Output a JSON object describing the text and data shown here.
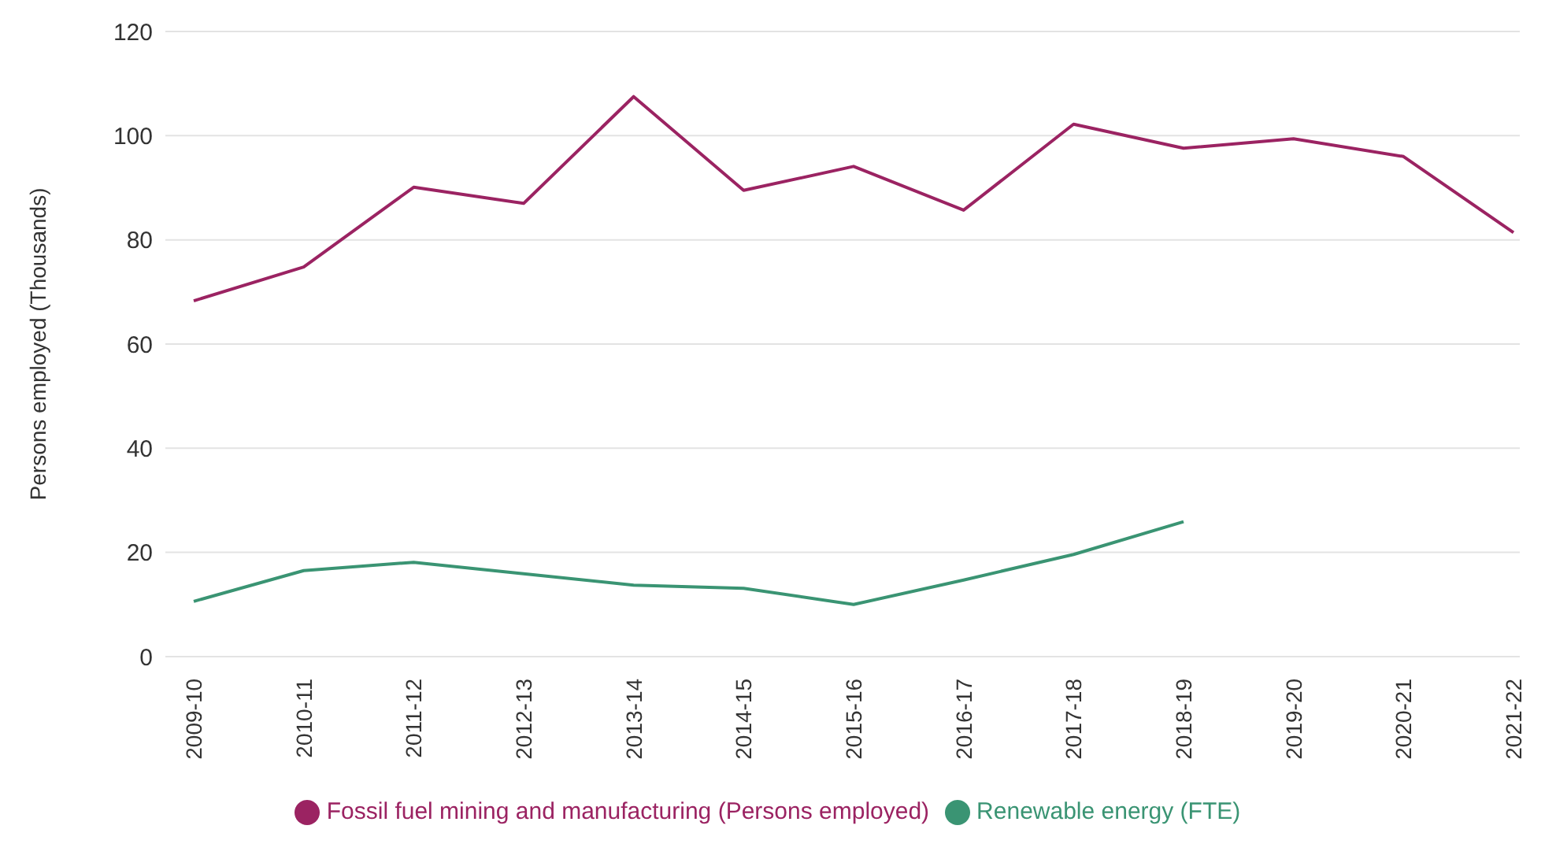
{
  "chart_data": {
    "type": "line",
    "ylabel": "Persons employed (Thousands)",
    "categories": [
      "2009-10",
      "2010-11",
      "2011-12",
      "2012-13",
      "2013-14",
      "2014-15",
      "2015-16",
      "2016-17",
      "2017-18",
      "2018-19",
      "2019-20",
      "2020-21",
      "2021-22"
    ],
    "series": [
      {
        "name": "Fossil fuel mining and manufacturing (Persons employed)",
        "color": "#9b2362",
        "values": [
          68.3,
          74.8,
          90.1,
          87.0,
          107.5,
          89.5,
          94.1,
          85.7,
          102.2,
          97.6,
          99.4,
          96.0,
          81.4
        ]
      },
      {
        "name": "Renewable energy (FTE)",
        "color": "#3a9473",
        "values": [
          10.6,
          16.5,
          18.1,
          15.9,
          13.7,
          13.1,
          10.0,
          14.7,
          19.6,
          25.9,
          null,
          null,
          null
        ]
      }
    ],
    "ylim": [
      0,
      120
    ],
    "yticks": [
      0,
      20,
      40,
      60,
      80,
      100,
      120
    ],
    "grid": "y",
    "legend": "bottom",
    "marker": "none",
    "line_style": "solid"
  }
}
